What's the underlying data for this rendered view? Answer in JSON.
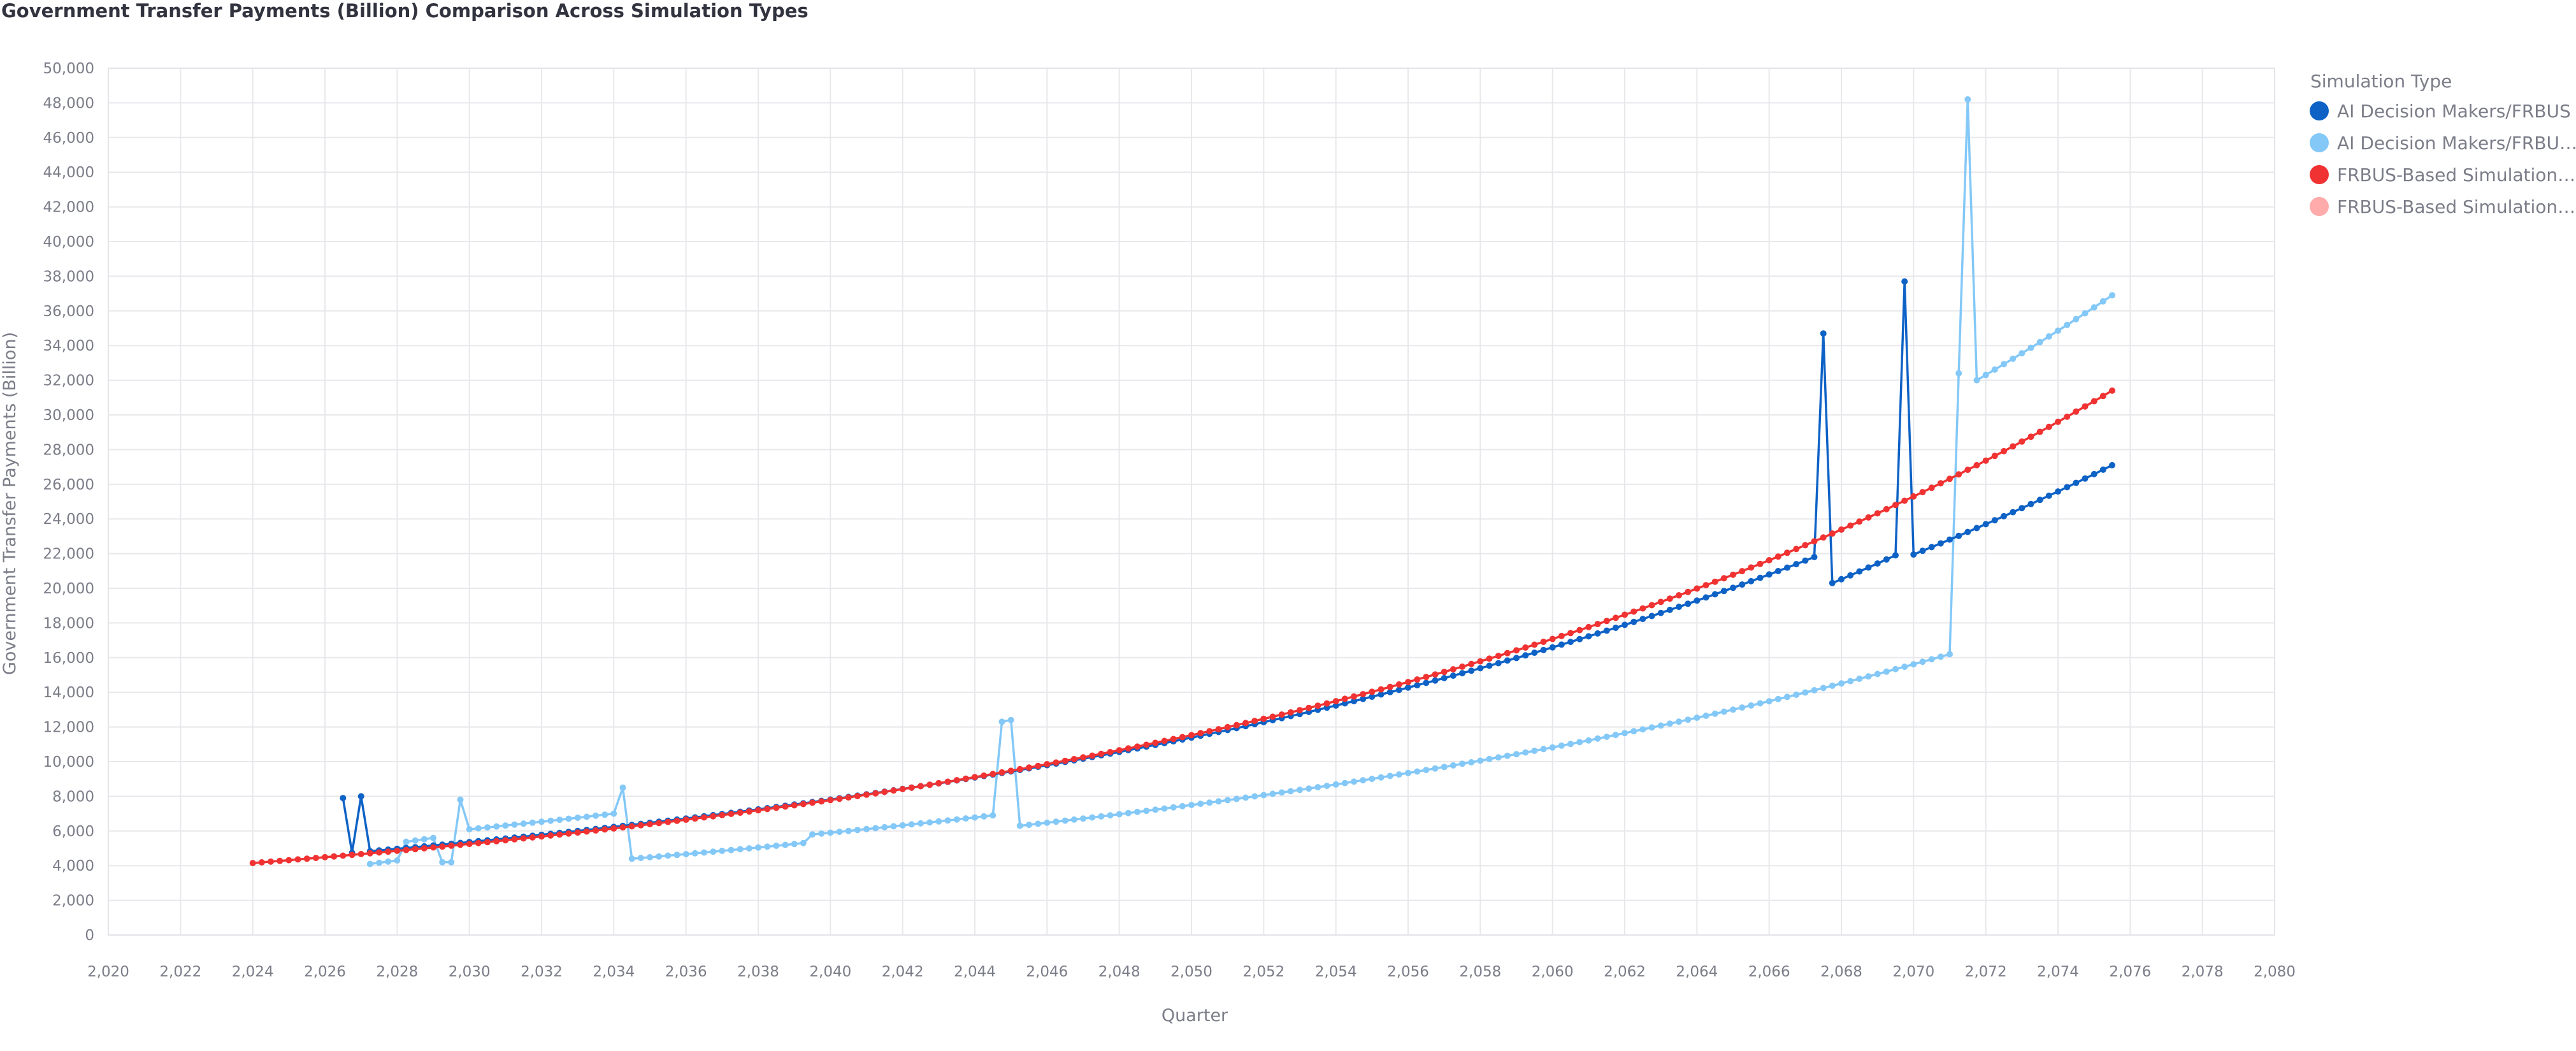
{
  "chart_data": {
    "type": "line",
    "title": "Government Transfer Payments (Billion) Comparison Across Simulation Types",
    "xlabel": "Quarter",
    "ylabel": "Government Transfer Payments (Billion)",
    "xlim": [
      2020,
      2080
    ],
    "ylim": [
      0,
      50000
    ],
    "x_ticks": [
      2020,
      2022,
      2024,
      2026,
      2028,
      2030,
      2032,
      2034,
      2036,
      2038,
      2040,
      2042,
      2044,
      2046,
      2048,
      2050,
      2052,
      2054,
      2056,
      2058,
      2060,
      2062,
      2064,
      2066,
      2068,
      2070,
      2072,
      2074,
      2076,
      2078,
      2080
    ],
    "x_tick_labels": [
      "2,020",
      "2,022",
      "2,024",
      "2,026",
      "2,028",
      "2,030",
      "2,032",
      "2,034",
      "2,036",
      "2,038",
      "2,040",
      "2,042",
      "2,044",
      "2,046",
      "2,048",
      "2,050",
      "2,052",
      "2,054",
      "2,056",
      "2,058",
      "2,060",
      "2,062",
      "2,064",
      "2,066",
      "2,068",
      "2,070",
      "2,072",
      "2,074",
      "2,076",
      "2,078",
      "2,080"
    ],
    "y_ticks": [
      0,
      2000,
      4000,
      6000,
      8000,
      10000,
      12000,
      14000,
      16000,
      18000,
      20000,
      22000,
      24000,
      26000,
      28000,
      30000,
      32000,
      34000,
      36000,
      38000,
      40000,
      42000,
      44000,
      46000,
      48000,
      50000
    ],
    "y_tick_labels": [
      "0",
      "2,000",
      "4,000",
      "6,000",
      "8,000",
      "10,000",
      "12,000",
      "14,000",
      "16,000",
      "18,000",
      "20,000",
      "22,000",
      "24,000",
      "26,000",
      "28,000",
      "30,000",
      "32,000",
      "34,000",
      "36,000",
      "38,000",
      "40,000",
      "42,000",
      "44,000",
      "46,000",
      "48,000",
      "50,000"
    ],
    "grid": true,
    "legend_position": "right",
    "legend_title": "Simulation Type",
    "series": [
      {
        "name": "AI Decision Makers/FRBUS",
        "color": "#0e62c6",
        "segments": [
          {
            "x_start": 2026.5,
            "x_end": 2067.25,
            "y_start": 4700,
            "y_end": 21800
          },
          {
            "x_start": 2067.75,
            "x_end": 2069.5,
            "y_start": 20300,
            "y_end": 21900
          },
          {
            "x_start": 2070.0,
            "x_end": 2075.5,
            "y_start": 21950,
            "y_end": 27100
          }
        ],
        "spikes": [
          {
            "x": 2026.5,
            "y": 7900
          },
          {
            "x": 2027.0,
            "y": 8000
          },
          {
            "x": 2067.5,
            "y": 34700
          },
          {
            "x": 2069.75,
            "y": 37700
          }
        ]
      },
      {
        "name": "AI Decision Makers/FRBUS (Chance)",
        "color": "#83c8f7",
        "segments": [
          {
            "x_start": 2027.25,
            "x_end": 2028.0,
            "y_start": 4100,
            "y_end": 4300
          },
          {
            "x_start": 2028.0,
            "x_end": 2029.0,
            "y_start": 5300,
            "y_end": 5600
          },
          {
            "x_start": 2030.0,
            "x_end": 2034.0,
            "y_start": 6100,
            "y_end": 7000
          },
          {
            "x_start": 2034.5,
            "x_end": 2039.25,
            "y_start": 4400,
            "y_end": 5300
          },
          {
            "x_start": 2039.5,
            "x_end": 2044.5,
            "y_start": 5800,
            "y_end": 6900
          },
          {
            "x_start": 2045.25,
            "x_end": 2071.0,
            "y_start": 6300,
            "y_end": 16200
          },
          {
            "x_start": 2071.75,
            "x_end": 2075.5,
            "y_start": 32000,
            "y_end": 36900
          }
        ],
        "spikes": [
          {
            "x": 2029.25,
            "y": 4200
          },
          {
            "x": 2029.5,
            "y": 4200
          },
          {
            "x": 2029.75,
            "y": 7800
          },
          {
            "x": 2034.25,
            "y": 8500
          },
          {
            "x": 2044.75,
            "y": 12300
          },
          {
            "x": 2045.0,
            "y": 12400
          },
          {
            "x": 2071.25,
            "y": 32400
          },
          {
            "x": 2071.5,
            "y": 48200
          }
        ]
      },
      {
        "name": "FRBUS-Based Simulation",
        "color": "#f03232",
        "segments": [
          {
            "x_start": 2024.0,
            "x_end": 2075.5,
            "y_start": 4150,
            "y_end": 31400
          }
        ],
        "spikes": []
      },
      {
        "name": "FRBUS-Based Simulation (Alt)",
        "color": "#ffabab",
        "segments": [],
        "spikes": []
      }
    ]
  },
  "legend_labels": [
    "AI Decision Makers/FRBUS",
    "AI Decision Makers/FRBU…",
    "FRBUS-Based Simulation…",
    "FRBUS-Based Simulation…"
  ]
}
